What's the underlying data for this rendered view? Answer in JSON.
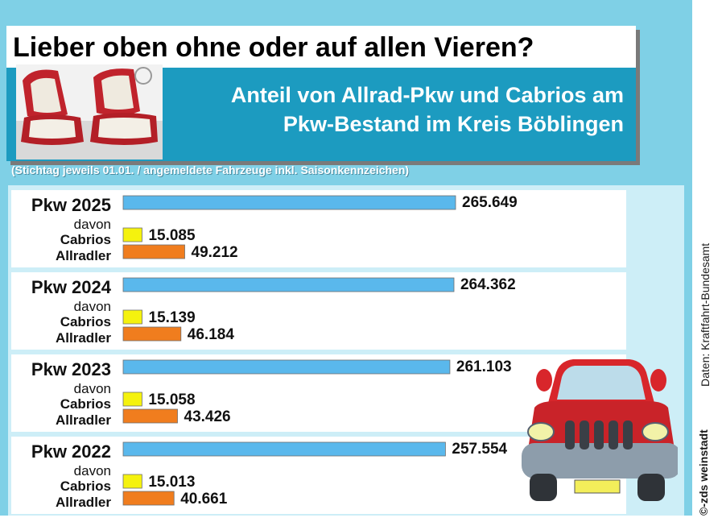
{
  "title": "Lieber oben ohne oder auf allen Vieren?",
  "subtitle_lines": [
    "Anteil von Allrad-Pkw und Cabrios am",
    "Pkw-Bestand im Kreis Böblingen"
  ],
  "note": "(Stichtag jeweils 01.01.  /  angemeldete Fahrzeuge inkl. Saisonkennzeichen)",
  "source": "Daten: Kraftfahrt-Bundesamt",
  "credit": "©-zds weinstadt",
  "colors": {
    "pkw": "#5ab8ec",
    "cabrios": "#f5f20e",
    "allradler": "#f07d1e",
    "panel": "#ffffff",
    "band": "#1c9bc0"
  },
  "chart_data": {
    "type": "bar",
    "orientation": "horizontal",
    "labels": {
      "sublabel": "davon",
      "cabrios": "Cabrios",
      "allradler": "Allradler"
    },
    "groups": [
      {
        "label": "Pkw 2025",
        "pkw": 265649,
        "pkw_label": "265.649",
        "cabrios": 15085,
        "cabrios_label": "15.085",
        "allradler": 49212,
        "allradler_label": "49.212"
      },
      {
        "label": "Pkw 2024",
        "pkw": 264362,
        "pkw_label": "264.362",
        "cabrios": 15139,
        "cabrios_label": "15.139",
        "allradler": 46184,
        "allradler_label": "46.184"
      },
      {
        "label": "Pkw 2023",
        "pkw": 261103,
        "pkw_label": "261.103",
        "cabrios": 15058,
        "cabrios_label": "15.058",
        "allradler": 43426,
        "allradler_label": "43.426"
      },
      {
        "label": "Pkw 2022",
        "pkw": 257554,
        "pkw_label": "257.554",
        "cabrios": 15013,
        "cabrios_label": "15.013",
        "allradler": 40661,
        "allradler_label": "40.661"
      }
    ],
    "grid": false,
    "legend": "none"
  }
}
